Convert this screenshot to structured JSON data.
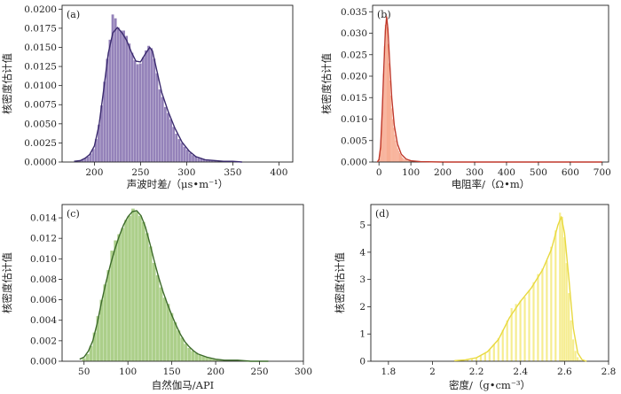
{
  "chart_data": [
    {
      "type": "histogram",
      "panel_label": "(a)",
      "xlabel": "声波时差/（μs•m⁻¹）",
      "ylabel": "核密度估计值",
      "xlim": [
        165,
        415
      ],
      "ylim": [
        0,
        0.0205
      ],
      "xticks": [
        200,
        250,
        300,
        350,
        400
      ],
      "yticks": [
        0,
        0.0025,
        0.005,
        0.0075,
        0.01,
        0.0125,
        0.015,
        0.0175,
        0.02
      ],
      "ytick_labels": [
        "0.0000",
        "0.0025",
        "0.0050",
        "0.0075",
        "0.0100",
        "0.0125",
        "0.0150",
        "0.0175",
        "0.0200"
      ],
      "bar_color": "#8e7bb5",
      "line_color": "#3a2a6e",
      "bin_width": 3,
      "bins": [
        [
          181,
          0.0001
        ],
        [
          184,
          0.0002
        ],
        [
          187,
          0.0003
        ],
        [
          190,
          0.0005
        ],
        [
          193,
          0.0007
        ],
        [
          196,
          0.0011
        ],
        [
          199,
          0.0017
        ],
        [
          202,
          0.003
        ],
        [
          205,
          0.0049
        ],
        [
          208,
          0.0074
        ],
        [
          211,
          0.0105
        ],
        [
          214,
          0.0135
        ],
        [
          217,
          0.016
        ],
        [
          220,
          0.0193
        ],
        [
          223,
          0.0188
        ],
        [
          226,
          0.0176
        ],
        [
          229,
          0.0172
        ],
        [
          232,
          0.0172
        ],
        [
          235,
          0.0165
        ],
        [
          238,
          0.0155
        ],
        [
          241,
          0.0143
        ],
        [
          244,
          0.0133
        ],
        [
          247,
          0.0128
        ],
        [
          250,
          0.0129
        ],
        [
          253,
          0.0137
        ],
        [
          256,
          0.0146
        ],
        [
          259,
          0.0152
        ],
        [
          262,
          0.0149
        ],
        [
          265,
          0.0135
        ],
        [
          268,
          0.0116
        ],
        [
          271,
          0.0095
        ],
        [
          274,
          0.0085
        ],
        [
          277,
          0.0072
        ],
        [
          280,
          0.0064
        ],
        [
          283,
          0.0056
        ],
        [
          286,
          0.0046
        ],
        [
          289,
          0.0037
        ],
        [
          292,
          0.003
        ],
        [
          295,
          0.0025
        ],
        [
          298,
          0.002
        ],
        [
          301,
          0.0016
        ],
        [
          304,
          0.0012
        ],
        [
          307,
          0.0009
        ],
        [
          310,
          0.0007
        ],
        [
          313,
          0.0005
        ],
        [
          316,
          0.0004
        ],
        [
          319,
          0.0003
        ],
        [
          322,
          0.0003
        ],
        [
          325,
          0.0002
        ],
        [
          328,
          0.0002
        ],
        [
          331,
          0.0002
        ],
        [
          334,
          0.0001
        ],
        [
          337,
          0.0001
        ],
        [
          340,
          0.0001
        ],
        [
          343,
          0.0001
        ],
        [
          346,
          0.0001
        ]
      ],
      "kde": [
        [
          178,
          0.0001
        ],
        [
          185,
          0.0002
        ],
        [
          190,
          0.0005
        ],
        [
          195,
          0.001
        ],
        [
          200,
          0.0021
        ],
        [
          205,
          0.0048
        ],
        [
          210,
          0.0094
        ],
        [
          215,
          0.0142
        ],
        [
          220,
          0.0169
        ],
        [
          225,
          0.0176
        ],
        [
          230,
          0.0169
        ],
        [
          235,
          0.0159
        ],
        [
          240,
          0.0144
        ],
        [
          245,
          0.0132
        ],
        [
          250,
          0.0131
        ],
        [
          255,
          0.0141
        ],
        [
          260,
          0.015
        ],
        [
          263,
          0.0145
        ],
        [
          268,
          0.0118
        ],
        [
          273,
          0.0091
        ],
        [
          280,
          0.0066
        ],
        [
          287,
          0.0045
        ],
        [
          295,
          0.0026
        ],
        [
          303,
          0.0014
        ],
        [
          310,
          0.0007
        ],
        [
          320,
          0.0003
        ],
        [
          330,
          0.0002
        ],
        [
          340,
          0.0001
        ],
        [
          350,
          0.0001
        ],
        [
          360,
          0.0
        ]
      ]
    },
    {
      "type": "histogram",
      "panel_label": "(b)",
      "xlabel": "电阻率/（Ω•m）",
      "ylabel": "核密度估计值",
      "xlim": [
        -20,
        720
      ],
      "ylim": [
        0,
        0.0365
      ],
      "xticks": [
        0,
        100,
        200,
        300,
        400,
        500,
        600,
        700
      ],
      "yticks": [
        0,
        0.005,
        0.01,
        0.015,
        0.02,
        0.025,
        0.03,
        0.035
      ],
      "ytick_labels": [
        "0.000",
        "0.005",
        "0.010",
        "0.015",
        "0.020",
        "0.025",
        "0.030",
        "0.035"
      ],
      "bar_color": "#f4906e",
      "line_color": "#c0392b",
      "bin_width": 3,
      "bins": [
        [
          2,
          0.0008
        ],
        [
          5,
          0.003
        ],
        [
          8,
          0.0075
        ],
        [
          11,
          0.0135
        ],
        [
          14,
          0.0205
        ],
        [
          17,
          0.027
        ],
        [
          20,
          0.032
        ],
        [
          23,
          0.0345
        ],
        [
          26,
          0.0315
        ],
        [
          29,
          0.0275
        ],
        [
          32,
          0.023
        ],
        [
          35,
          0.019
        ],
        [
          38,
          0.0155
        ],
        [
          41,
          0.0125
        ],
        [
          44,
          0.01
        ],
        [
          47,
          0.008
        ],
        [
          50,
          0.0063
        ],
        [
          53,
          0.005
        ],
        [
          56,
          0.004
        ],
        [
          59,
          0.0032
        ],
        [
          62,
          0.0026
        ],
        [
          65,
          0.0021
        ],
        [
          68,
          0.0017
        ],
        [
          71,
          0.0014
        ],
        [
          74,
          0.0011
        ],
        [
          77,
          0.0009
        ],
        [
          80,
          0.0007
        ],
        [
          83,
          0.0006
        ],
        [
          86,
          0.0005
        ],
        [
          89,
          0.0004
        ],
        [
          92,
          0.0003
        ],
        [
          95,
          0.0003
        ],
        [
          98,
          0.0002
        ],
        [
          101,
          0.0002
        ],
        [
          104,
          0.0002
        ],
        [
          107,
          0.0001
        ],
        [
          110,
          0.0001
        ],
        [
          113,
          0.0001
        ],
        [
          116,
          0.0001
        ],
        [
          119,
          0.0001
        ]
      ],
      "kde": [
        [
          -5,
          0.0
        ],
        [
          0,
          0.0006
        ],
        [
          5,
          0.0035
        ],
        [
          10,
          0.0115
        ],
        [
          15,
          0.0215
        ],
        [
          20,
          0.0305
        ],
        [
          24,
          0.0338
        ],
        [
          28,
          0.031
        ],
        [
          33,
          0.024
        ],
        [
          40,
          0.015
        ],
        [
          48,
          0.0085
        ],
        [
          58,
          0.0042
        ],
        [
          70,
          0.0018
        ],
        [
          85,
          0.0007
        ],
        [
          100,
          0.0003
        ],
        [
          130,
          0.0001
        ],
        [
          200,
          0.0
        ],
        [
          700,
          0.0
        ]
      ]
    },
    {
      "type": "histogram",
      "panel_label": "(c)",
      "xlabel": "自然伽马/API",
      "ylabel": "核密度估计值",
      "xlim": [
        25,
        300
      ],
      "ylim": [
        0,
        0.0153
      ],
      "xticks": [
        50,
        100,
        150,
        200,
        250,
        300
      ],
      "yticks": [
        0,
        0.002,
        0.004,
        0.006,
        0.008,
        0.01,
        0.012,
        0.014
      ],
      "ytick_labels": [
        "0.000",
        "0.002",
        "0.004",
        "0.006",
        "0.008",
        "0.010",
        "0.012",
        "0.014"
      ],
      "bar_color": "#a8cc84",
      "line_color": "#3d6b2b",
      "bin_width": 4,
      "bins": [
        [
          50,
          0.0003
        ],
        [
          54,
          0.0007
        ],
        [
          58,
          0.0015
        ],
        [
          62,
          0.0028
        ],
        [
          66,
          0.0044
        ],
        [
          70,
          0.006
        ],
        [
          74,
          0.0075
        ],
        [
          78,
          0.0089
        ],
        [
          82,
          0.0108
        ],
        [
          86,
          0.0118
        ],
        [
          90,
          0.0124
        ],
        [
          94,
          0.013
        ],
        [
          98,
          0.0138
        ],
        [
          102,
          0.0142
        ],
        [
          106,
          0.0149
        ],
        [
          110,
          0.0146
        ],
        [
          114,
          0.0142
        ],
        [
          118,
          0.0136
        ],
        [
          122,
          0.0125
        ],
        [
          126,
          0.0112
        ],
        [
          130,
          0.0096
        ],
        [
          134,
          0.0084
        ],
        [
          138,
          0.0072
        ],
        [
          142,
          0.0062
        ],
        [
          146,
          0.0056
        ],
        [
          150,
          0.0047
        ],
        [
          154,
          0.0038
        ],
        [
          158,
          0.003
        ],
        [
          162,
          0.0023
        ],
        [
          166,
          0.0017
        ],
        [
          170,
          0.0013
        ],
        [
          174,
          0.001
        ],
        [
          178,
          0.0008
        ],
        [
          182,
          0.0006
        ],
        [
          186,
          0.0005
        ],
        [
          190,
          0.0004
        ],
        [
          194,
          0.0003
        ],
        [
          198,
          0.0002
        ],
        [
          202,
          0.0002
        ],
        [
          206,
          0.0001
        ],
        [
          210,
          0.0001
        ],
        [
          214,
          0.0001
        ],
        [
          218,
          0.0001
        ],
        [
          222,
          0.0001
        ],
        [
          226,
          0.0001
        ],
        [
          230,
          0.0001
        ]
      ],
      "kde": [
        [
          45,
          0.0002
        ],
        [
          50,
          0.0004
        ],
        [
          55,
          0.001
        ],
        [
          60,
          0.002
        ],
        [
          65,
          0.0037
        ],
        [
          70,
          0.0058
        ],
        [
          75,
          0.0077
        ],
        [
          80,
          0.0094
        ],
        [
          85,
          0.0109
        ],
        [
          90,
          0.0122
        ],
        [
          95,
          0.0133
        ],
        [
          100,
          0.0141
        ],
        [
          105,
          0.0146
        ],
        [
          110,
          0.0147
        ],
        [
          115,
          0.0142
        ],
        [
          120,
          0.0131
        ],
        [
          125,
          0.0115
        ],
        [
          130,
          0.0098
        ],
        [
          135,
          0.0082
        ],
        [
          140,
          0.0068
        ],
        [
          145,
          0.0056
        ],
        [
          150,
          0.0045
        ],
        [
          155,
          0.0035
        ],
        [
          160,
          0.0026
        ],
        [
          165,
          0.0019
        ],
        [
          170,
          0.0014
        ],
        [
          175,
          0.001
        ],
        [
          180,
          0.0007
        ],
        [
          190,
          0.0004
        ],
        [
          200,
          0.0002
        ],
        [
          210,
          0.0001
        ],
        [
          225,
          0.0001
        ],
        [
          240,
          0.0
        ],
        [
          260,
          0.0
        ]
      ]
    },
    {
      "type": "histogram",
      "panel_label": "(d)",
      "xlabel": "密度/（g•cm⁻³）",
      "ylabel": "核密度估计值",
      "xlim": [
        1.72,
        2.8
      ],
      "ylim": [
        0,
        5.75
      ],
      "xticks": [
        1.8,
        2.0,
        2.2,
        2.4,
        2.6,
        2.8
      ],
      "yticks": [
        0,
        1,
        2,
        3,
        4,
        5
      ],
      "ytick_labels": [
        "0",
        "1",
        "2",
        "3",
        "4",
        "5"
      ],
      "bar_color": "#f5ec8a",
      "line_color": "#e8d940",
      "bin_width": 0.01,
      "bins": [
        [
          2.1,
          0.02
        ],
        [
          2.12,
          0.03
        ],
        [
          2.14,
          0.05
        ],
        [
          2.16,
          0.07
        ],
        [
          2.18,
          0.09
        ],
        [
          2.2,
          0.13
        ],
        [
          2.22,
          0.2
        ],
        [
          2.24,
          0.3
        ],
        [
          2.26,
          0.44
        ],
        [
          2.28,
          0.62
        ],
        [
          2.3,
          0.85
        ],
        [
          2.32,
          1.15
        ],
        [
          2.34,
          1.5
        ],
        [
          2.36,
          1.95
        ],
        [
          2.38,
          2.1
        ],
        [
          2.4,
          2.22
        ],
        [
          2.42,
          2.35
        ],
        [
          2.44,
          2.6
        ],
        [
          2.46,
          2.9
        ],
        [
          2.48,
          3.2
        ],
        [
          2.5,
          3.4
        ],
        [
          2.52,
          3.7
        ],
        [
          2.54,
          4.2
        ],
        [
          2.56,
          4.8
        ],
        [
          2.58,
          5.45
        ],
        [
          2.59,
          5.3
        ],
        [
          2.6,
          4.55
        ],
        [
          2.61,
          3.6
        ],
        [
          2.62,
          2.5
        ],
        [
          2.63,
          1.5
        ],
        [
          2.64,
          0.8
        ],
        [
          2.65,
          0.38
        ],
        [
          2.66,
          0.15
        ],
        [
          2.67,
          0.05
        ]
      ],
      "kde": [
        [
          2.1,
          0.02
        ],
        [
          2.15,
          0.05
        ],
        [
          2.2,
          0.13
        ],
        [
          2.25,
          0.35
        ],
        [
          2.3,
          0.8
        ],
        [
          2.35,
          1.6
        ],
        [
          2.4,
          2.2
        ],
        [
          2.45,
          2.7
        ],
        [
          2.5,
          3.35
        ],
        [
          2.54,
          4.1
        ],
        [
          2.57,
          5.0
        ],
        [
          2.585,
          5.3
        ],
        [
          2.6,
          4.7
        ],
        [
          2.62,
          3.0
        ],
        [
          2.64,
          1.2
        ],
        [
          2.66,
          0.3
        ],
        [
          2.68,
          0.05
        ],
        [
          2.7,
          0.0
        ]
      ]
    }
  ]
}
